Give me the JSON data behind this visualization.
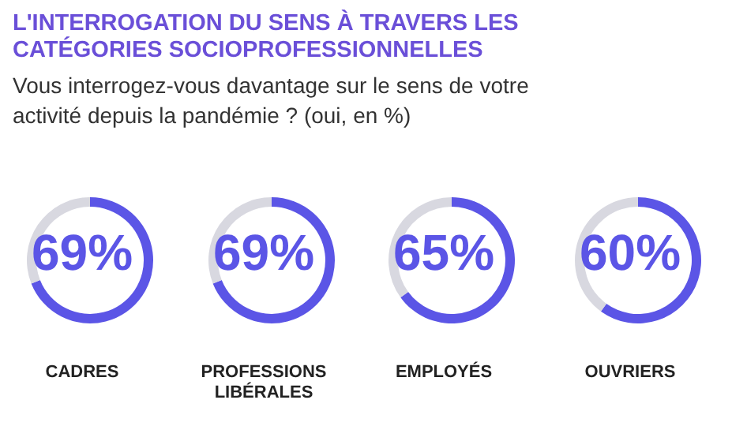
{
  "chart_data": [
    {
      "type": "donut",
      "title": "L'INTERROGATION DU SENS À TRAVERS LES CATÉGORIES SOCIOPROFESSIONNELLES",
      "subtitle": "Vous interrogez-vous davantage sur le sens de votre activité depuis la pandémie ? (oui, en %)",
      "categories": [
        "CADRES",
        null
      ],
      "values": [
        69,
        31
      ],
      "colors": [
        "#5b55e6",
        "#d8d8e0"
      ],
      "annotations": [
        "69%"
      ]
    },
    {
      "type": "donut",
      "categories": [
        "PROFESSIONS LIBÉRALES",
        null
      ],
      "values": [
        69,
        31
      ],
      "colors": [
        "#5b55e6",
        "#d8d8e0"
      ],
      "annotations": [
        "69%"
      ]
    },
    {
      "type": "donut",
      "categories": [
        "EMPLOYÉS",
        null
      ],
      "values": [
        65,
        35
      ],
      "colors": [
        "#5b55e6",
        "#d8d8e0"
      ],
      "annotations": [
        "65%"
      ]
    },
    {
      "type": "donut",
      "categories": [
        "OUVRIERS",
        null
      ],
      "values": [
        60,
        40
      ],
      "colors": [
        "#5b55e6",
        "#d8d8e0"
      ],
      "annotations": [
        "60%"
      ]
    }
  ]
}
